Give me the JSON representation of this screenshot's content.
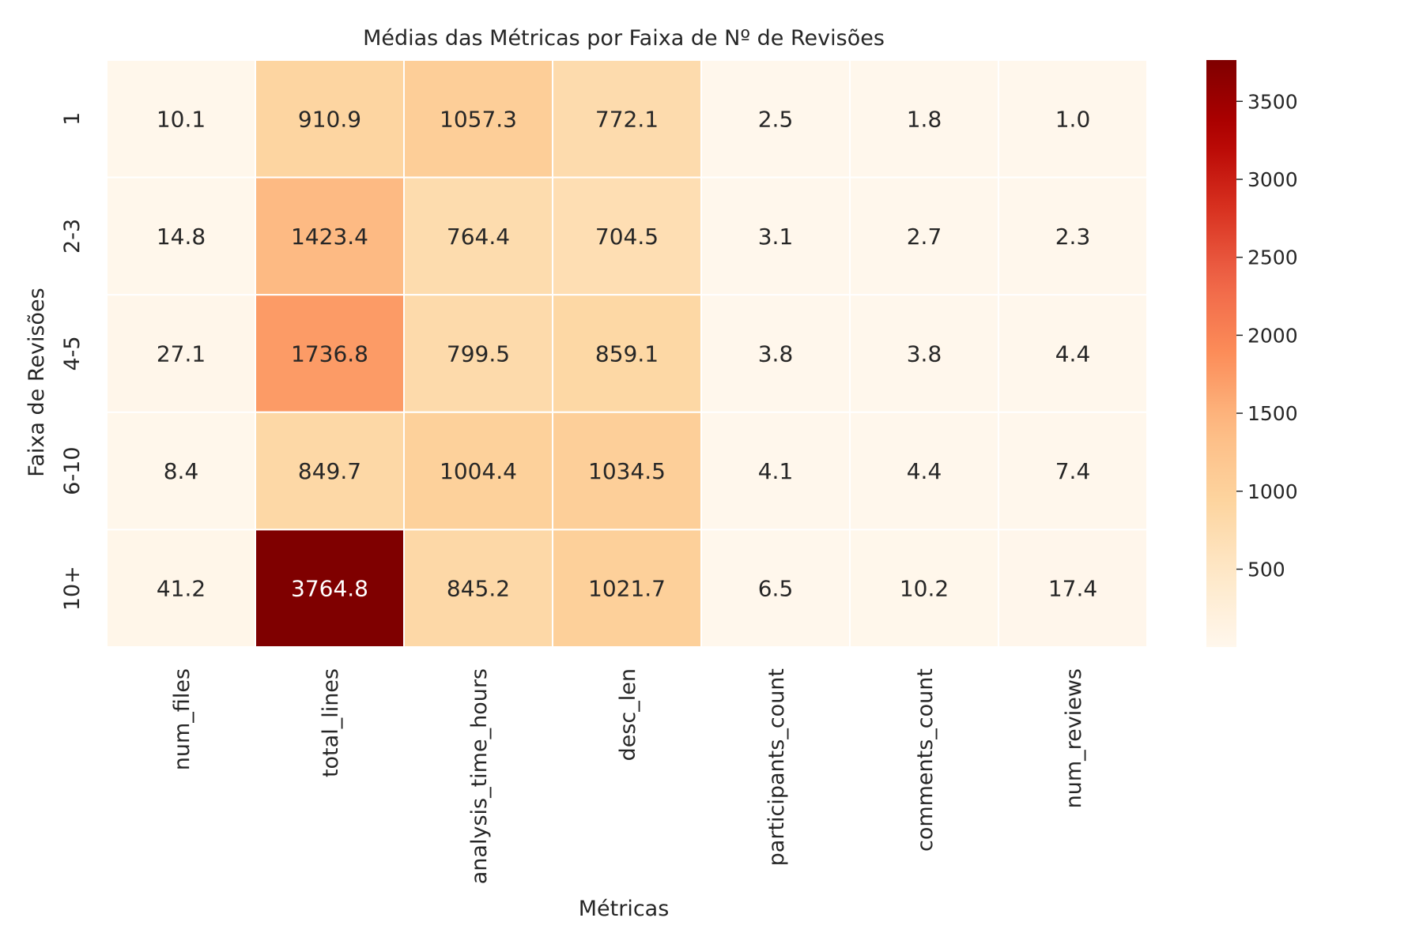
{
  "chart_data": {
    "type": "heatmap",
    "title": "Médias das Métricas por Faixa de Nº de Revisões",
    "xlabel": "Métricas",
    "ylabel": "Faixa de Revisões",
    "x_categories": [
      "num_files",
      "total_lines",
      "analysis_time_hours",
      "desc_len",
      "participants_count",
      "comments_count",
      "num_reviews"
    ],
    "y_categories": [
      "1",
      "2-3",
      "4-5",
      "6-10",
      "10+"
    ],
    "values": [
      [
        10.1,
        910.9,
        1057.3,
        772.1,
        2.5,
        1.8,
        1.0
      ],
      [
        14.8,
        1423.4,
        764.4,
        704.5,
        3.1,
        2.7,
        2.3
      ],
      [
        27.1,
        1736.8,
        799.5,
        859.1,
        3.8,
        3.8,
        4.4
      ],
      [
        8.4,
        849.7,
        1004.4,
        1034.5,
        4.1,
        4.4,
        7.4
      ],
      [
        41.2,
        3764.8,
        845.2,
        1021.7,
        6.5,
        10.2,
        17.4
      ]
    ],
    "value_labels": [
      [
        "10.1",
        "910.9",
        "1057.3",
        "772.1",
        "2.5",
        "1.8",
        "1.0"
      ],
      [
        "14.8",
        "1423.4",
        "764.4",
        "704.5",
        "3.1",
        "2.7",
        "2.3"
      ],
      [
        "27.1",
        "1736.8",
        "799.5",
        "859.1",
        "3.8",
        "3.8",
        "4.4"
      ],
      [
        "8.4",
        "849.7",
        "1004.4",
        "1034.5",
        "4.1",
        "4.4",
        "7.4"
      ],
      [
        "41.2",
        "3764.8",
        "845.2",
        "1021.7",
        "6.5",
        "10.2",
        "17.4"
      ]
    ],
    "colormap": "OrRd",
    "color_range": [
      1.0,
      3764.8
    ],
    "colorbar_ticks": [
      500,
      1000,
      1500,
      2000,
      2500,
      3000,
      3500
    ],
    "colorbar_tick_labels": [
      "500",
      "1000",
      "1500",
      "2000",
      "2500",
      "3000",
      "3500"
    ],
    "colorbar_position": "right",
    "grid": false
  }
}
